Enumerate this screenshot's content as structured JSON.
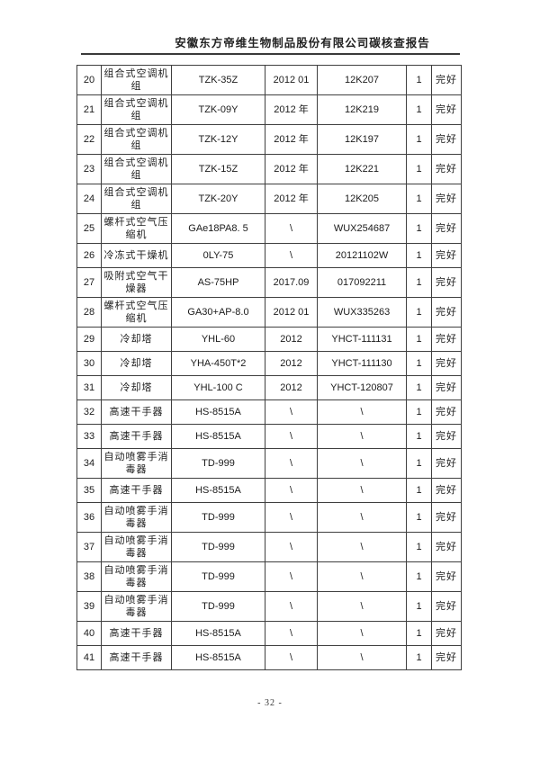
{
  "header": {
    "title": "安徽东方帝维生物制品股份有限公司碳核查报告"
  },
  "footer": {
    "page_number": "- 32 -"
  },
  "colors": {
    "table_border": "#3f3f3f",
    "header_rule": "#3a3a3a",
    "text": "#1b1b1b"
  },
  "table": {
    "rows": [
      {
        "no": "20",
        "name": "组合式空调机组",
        "model": "TZK-35Z",
        "date": "2012 01",
        "serial": "12K207",
        "qty": "1",
        "status": "完好"
      },
      {
        "no": "21",
        "name": "组合式空调机组",
        "model": "TZK-09Y",
        "date": "2012 年",
        "serial": "12K219",
        "qty": "1",
        "status": "完好"
      },
      {
        "no": "22",
        "name": "组合式空调机组",
        "model": "TZK-12Y",
        "date": "2012 年",
        "serial": "12K197",
        "qty": "1",
        "status": "完好"
      },
      {
        "no": "23",
        "name": "组合式空调机组",
        "model": "TZK-15Z",
        "date": "2012 年",
        "serial": "12K221",
        "qty": "1",
        "status": "完好"
      },
      {
        "no": "24",
        "name": "组合式空调机组",
        "model": "TZK-20Y",
        "date": "2012 年",
        "serial": "12K205",
        "qty": "1",
        "status": "完好"
      },
      {
        "no": "25",
        "name": "螺杆式空气压缩机",
        "model": "GAe18PA8. 5",
        "date": "\\",
        "serial": "WUX254687",
        "qty": "1",
        "status": "完好"
      },
      {
        "no": "26",
        "name": "冷冻式干燥机",
        "model": "0LY-75",
        "date": "\\",
        "serial": "20121102W",
        "qty": "1",
        "status": "完好"
      },
      {
        "no": "27",
        "name": "吸附式空气干燥器",
        "model": "AS-75HP",
        "date": "2017.09",
        "serial": "017092211",
        "qty": "1",
        "status": "完好"
      },
      {
        "no": "28",
        "name": "螺杆式空气压缩机",
        "model": "GA30+AP-8.0",
        "date": "2012 01",
        "serial": "WUX335263",
        "qty": "1",
        "status": "完好"
      },
      {
        "no": "29",
        "name": "冷却塔",
        "model": "YHL-60",
        "date": "2012",
        "serial": "YHCT-111131",
        "qty": "1",
        "status": "完好"
      },
      {
        "no": "30",
        "name": "冷却塔",
        "model": "YHA-450T*2",
        "date": "2012",
        "serial": "YHCT-111130",
        "qty": "1",
        "status": "完好"
      },
      {
        "no": "31",
        "name": "冷却塔",
        "model": "YHL-100 C",
        "date": "2012",
        "serial": "YHCT-120807",
        "qty": "1",
        "status": "完好"
      },
      {
        "no": "32",
        "name": "高速干手器",
        "model": "HS-8515A",
        "date": "\\",
        "serial": "\\",
        "qty": "1",
        "status": "完好"
      },
      {
        "no": "33",
        "name": "高速干手器",
        "model": "HS-8515A",
        "date": "\\",
        "serial": "\\",
        "qty": "1",
        "status": "完好"
      },
      {
        "no": "34",
        "name": "自动喷雾手消毒器",
        "model": "TD-999",
        "date": "\\",
        "serial": "\\",
        "qty": "1",
        "status": "完好"
      },
      {
        "no": "35",
        "name": "高速干手器",
        "model": "HS-8515A",
        "date": "\\",
        "serial": "\\",
        "qty": "1",
        "status": "完好"
      },
      {
        "no": "36",
        "name": "自动喷雾手消毒器",
        "model": "TD-999",
        "date": "\\",
        "serial": "\\",
        "qty": "1",
        "status": "完好"
      },
      {
        "no": "37",
        "name": "自动喷雾手消毒器",
        "model": "TD-999",
        "date": "\\",
        "serial": "\\",
        "qty": "1",
        "status": "完好"
      },
      {
        "no": "38",
        "name": "自动喷雾手消毒器",
        "model": "TD-999",
        "date": "\\",
        "serial": "\\",
        "qty": "1",
        "status": "完好"
      },
      {
        "no": "39",
        "name": "自动喷雾手消毒器",
        "model": "TD-999",
        "date": "\\",
        "serial": "\\",
        "qty": "1",
        "status": "完好"
      },
      {
        "no": "40",
        "name": "高速干手器",
        "model": "HS-8515A",
        "date": "\\",
        "serial": "\\",
        "qty": "1",
        "status": "完好"
      },
      {
        "no": "41",
        "name": "高速干手器",
        "model": "HS-8515A",
        "date": "\\",
        "serial": "\\",
        "qty": "1",
        "status": "完好"
      }
    ]
  }
}
